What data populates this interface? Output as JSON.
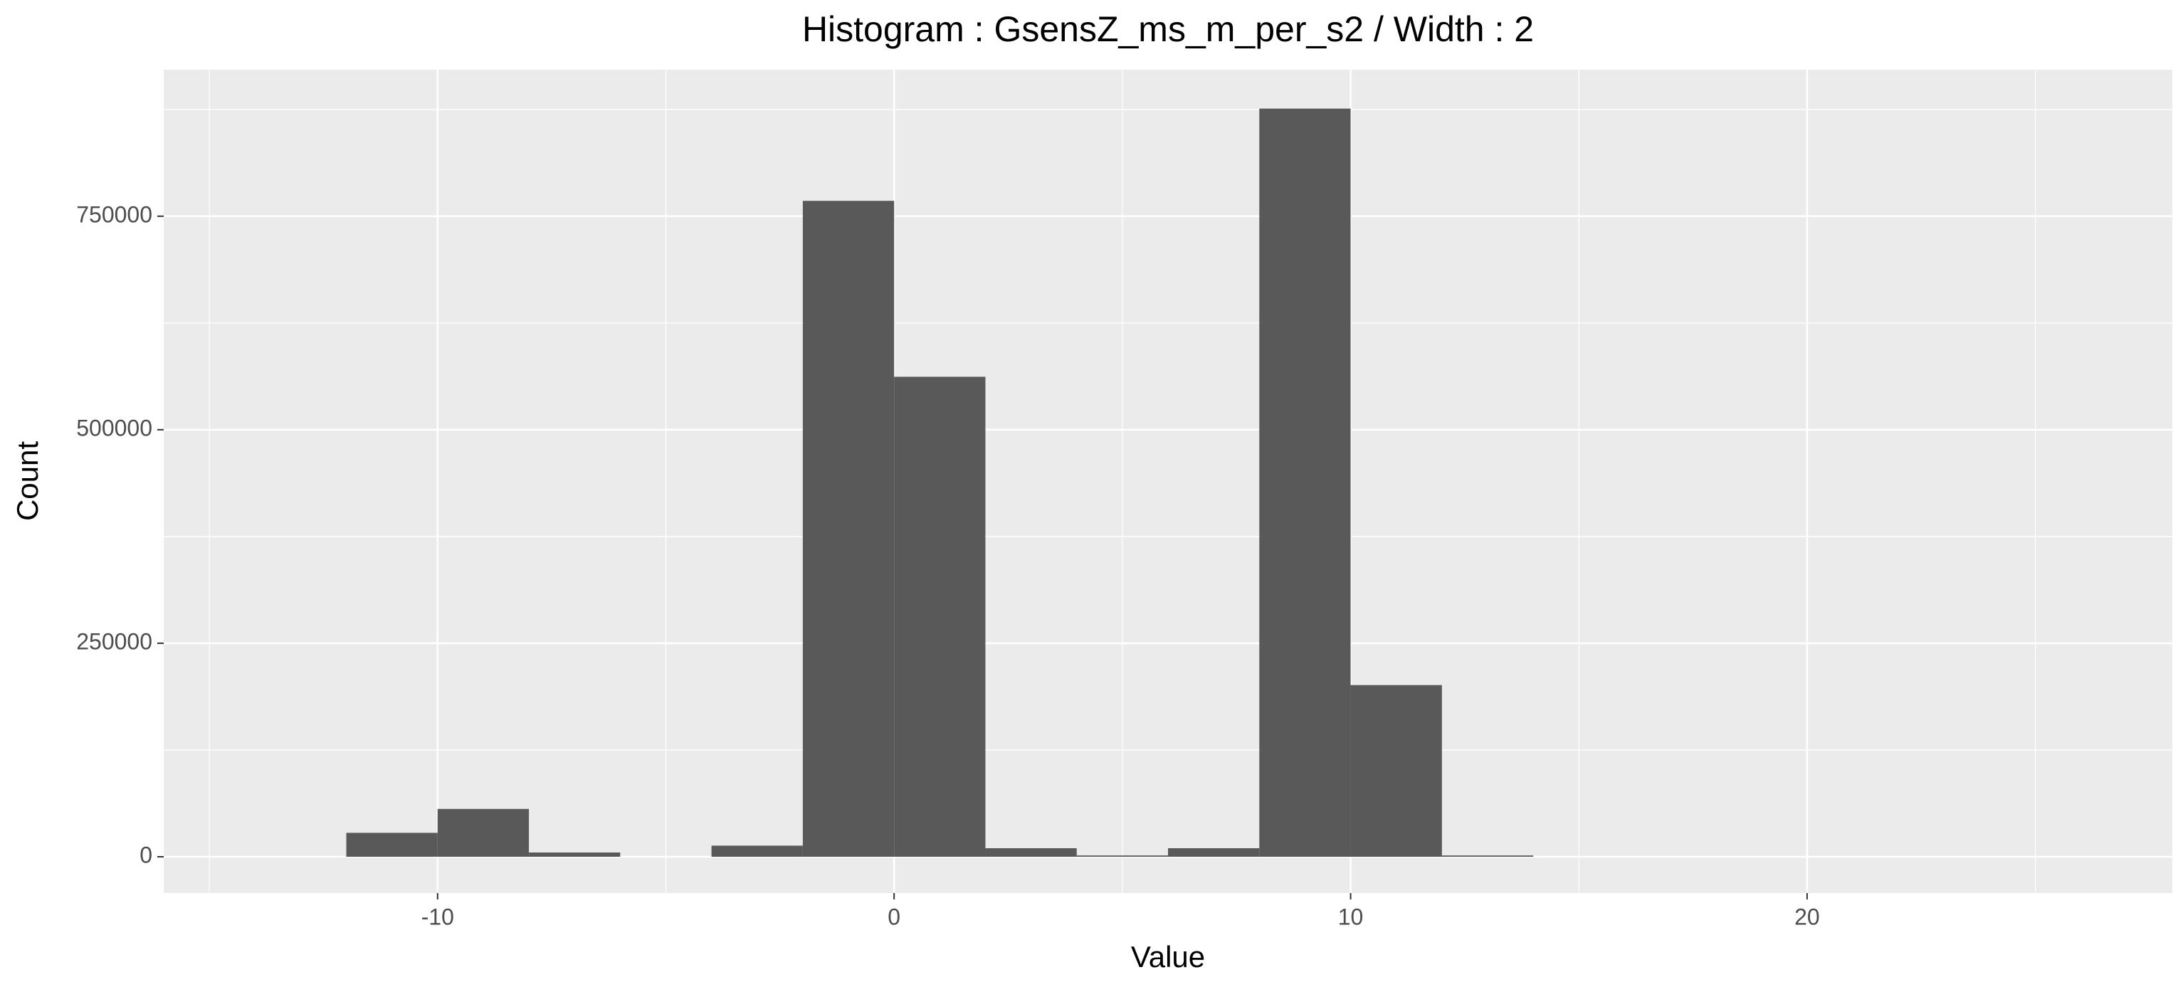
{
  "chart_data": {
    "type": "histogram",
    "title": "Histogram : GsensZ_ms_m_per_s2 / Width : 2",
    "x_label": "Value",
    "y_label": "Count",
    "bins": [
      -12,
      -10,
      -8,
      -6,
      -4,
      -2,
      0,
      2,
      4,
      6,
      8,
      10,
      12,
      14
    ],
    "values": [
      28000,
      56000,
      5000,
      0,
      13000,
      768000,
      562000,
      10000,
      1500,
      10000,
      876000,
      201000,
      1500
    ],
    "color": "#595959",
    "xlim": [
      -16,
      28
    ],
    "xticks": [
      -10,
      0,
      10,
      20
    ],
    "x_minor_grid": [
      -15,
      -5,
      5,
      15,
      25
    ],
    "ylim": [
      -42500,
      921500
    ],
    "yticks": [
      0,
      250000,
      500000,
      750000
    ],
    "y_minor_grid": [
      125000,
      375000,
      625000,
      875000
    ],
    "grid": true
  }
}
